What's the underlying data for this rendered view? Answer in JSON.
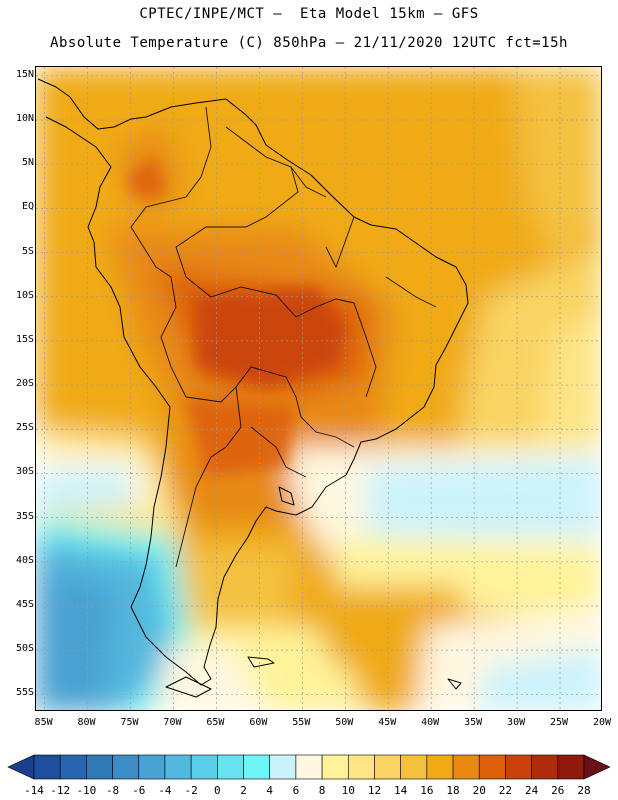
{
  "header": {
    "line1": "CPTEC/INPE/MCT —  Eta Model 15km — GFS",
    "line2": "Absolute Temperature (C) 850hPa — 21/11/2020 12UTC fct=15h"
  },
  "map": {
    "lat_labels": [
      "15N",
      "10N",
      "5N",
      "EQ",
      "5S",
      "10S",
      "15S",
      "20S",
      "25S",
      "30S",
      "35S",
      "40S",
      "45S",
      "50S",
      "55S"
    ],
    "lat_values": [
      15,
      10,
      5,
      0,
      -5,
      -10,
      -15,
      -20,
      -25,
      -30,
      -35,
      -40,
      -45,
      -50,
      -55
    ],
    "lon_labels": [
      "85W",
      "80W",
      "75W",
      "70W",
      "65W",
      "60W",
      "55W",
      "50W",
      "45W",
      "40W",
      "35W",
      "30W",
      "25W",
      "20W"
    ],
    "lon_values": [
      -85,
      -80,
      -75,
      -70,
      -65,
      -60,
      -55,
      -50,
      -45,
      -40,
      -35,
      -30,
      -25,
      -20
    ],
    "lon_range": [
      -86,
      -20
    ],
    "lat_range": [
      -57,
      16
    ]
  },
  "colorbar": {
    "labels": [
      "-14",
      "-12",
      "-10",
      "-8",
      "-6",
      "-4",
      "-2",
      "0",
      "2",
      "4",
      "6",
      "8",
      "10",
      "12",
      "14",
      "16",
      "18",
      "20",
      "22",
      "24",
      "26",
      "28"
    ],
    "colors": [
      "#1b3f8a",
      "#1f4f9c",
      "#2766ae",
      "#3279b8",
      "#3e8cc4",
      "#48a2d2",
      "#53b8de",
      "#5acde7",
      "#66e3ee",
      "#6ff5f5",
      "#ccf3fb",
      "#fff8e0",
      "#fff39a",
      "#fde585",
      "#f9d462",
      "#f4c13f",
      "#f0aa14",
      "#e88a12",
      "#dd5f0a",
      "#c9420a",
      "#ad2d0c",
      "#8f1a0c",
      "#6a0f18"
    ]
  }
}
